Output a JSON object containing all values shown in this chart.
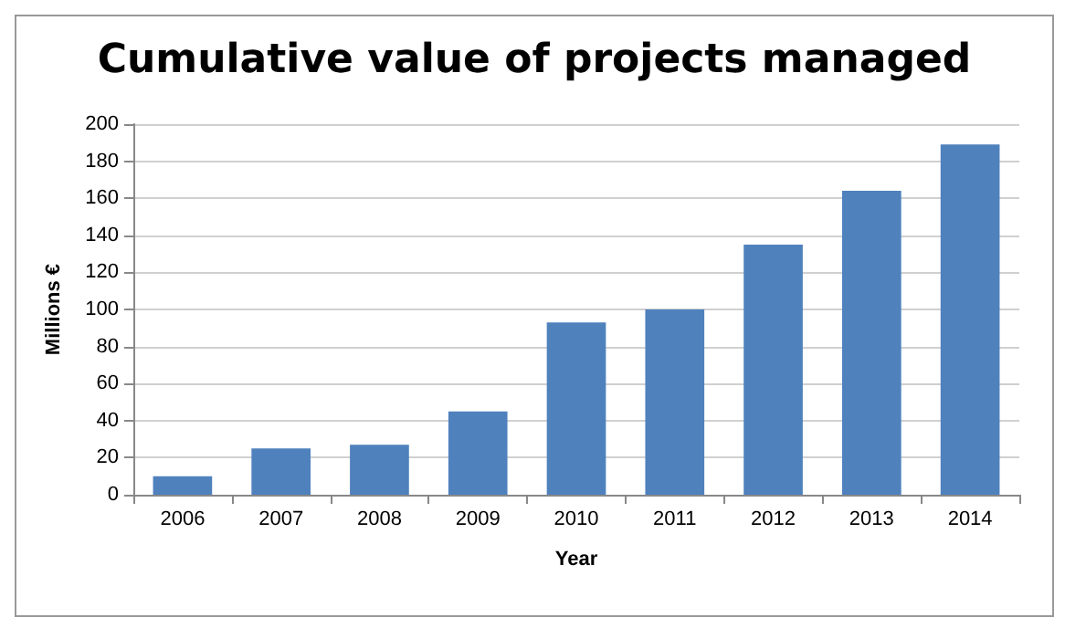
{
  "chart_data": {
    "type": "bar",
    "title": "Cumulative value of projects managed",
    "xlabel": "Year",
    "ylabel": "Millions €",
    "categories": [
      "2006",
      "2007",
      "2008",
      "2009",
      "2010",
      "2011",
      "2012",
      "2013",
      "2014"
    ],
    "values": [
      10,
      25,
      27,
      45,
      93,
      100,
      135,
      164,
      189
    ],
    "color": "#4f81bd",
    "ylim": [
      0,
      200
    ],
    "yticks": [
      0,
      20,
      40,
      60,
      80,
      100,
      120,
      140,
      160,
      180,
      200
    ],
    "grid": "y"
  }
}
